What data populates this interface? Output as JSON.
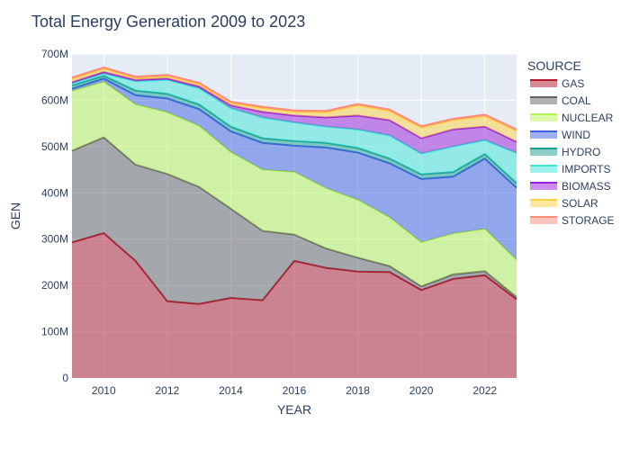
{
  "chart_data": {
    "type": "area",
    "stacked": true,
    "title": "Total Energy Generation 2009 to 2023",
    "xlabel": "YEAR",
    "ylabel": "GEN",
    "xlim": [
      2009,
      2023
    ],
    "ylim": [
      0,
      700000000
    ],
    "x": [
      2009,
      2010,
      2011,
      2012,
      2013,
      2014,
      2015,
      2016,
      2017,
      2018,
      2019,
      2020,
      2021,
      2022,
      2023
    ],
    "x_ticks": [
      2010,
      2012,
      2014,
      2016,
      2018,
      2020,
      2022
    ],
    "y_ticks": [
      {
        "value": 0,
        "label": "0"
      },
      {
        "value": 100000000,
        "label": "100M"
      },
      {
        "value": 200000000,
        "label": "200M"
      },
      {
        "value": 300000000,
        "label": "300M"
      },
      {
        "value": 400000000,
        "label": "400M"
      },
      {
        "value": 500000000,
        "label": "500M"
      },
      {
        "value": 600000000,
        "label": "600M"
      },
      {
        "value": 700000000,
        "label": "700M"
      }
    ],
    "grid": true,
    "legend_title": "SOURCE",
    "legend_position": "right",
    "series": [
      {
        "name": "GAS",
        "color": "#b2182b",
        "values": [
          293000000,
          313000000,
          253000000,
          166000000,
          160000000,
          173000000,
          168000000,
          253000000,
          238000000,
          230000000,
          229000000,
          190000000,
          214000000,
          222000000,
          170000000
        ]
      },
      {
        "name": "COAL",
        "color": "#636363",
        "values": [
          198000000,
          207000000,
          208000000,
          275000000,
          253000000,
          193000000,
          150000000,
          57000000,
          42000000,
          30000000,
          13000000,
          8000000,
          10000000,
          9000000,
          5000000
        ]
      },
      {
        "name": "NUCLEAR",
        "color": "#b8f553",
        "values": [
          129000000,
          120000000,
          130000000,
          133000000,
          132000000,
          122000000,
          132000000,
          135000000,
          130000000,
          125000000,
          105000000,
          95000000,
          88000000,
          91000000,
          80000000
        ]
      },
      {
        "name": "WIND",
        "color": "#3d5fe0",
        "values": [
          5000000,
          7000000,
          20000000,
          30000000,
          36000000,
          45000000,
          58000000,
          57000000,
          88000000,
          102000000,
          117000000,
          137000000,
          123000000,
          152000000,
          156000000
        ]
      },
      {
        "name": "HYDRO",
        "color": "#17a092",
        "values": [
          7000000,
          6000000,
          10000000,
          10000000,
          10000000,
          10000000,
          10000000,
          10000000,
          10000000,
          10000000,
          10000000,
          10000000,
          10000000,
          10000000,
          10000000
        ]
      },
      {
        "name": "IMPORTS",
        "color": "#3fe6d6",
        "values": [
          5000000,
          5000000,
          20000000,
          30000000,
          35000000,
          40000000,
          45000000,
          40000000,
          35000000,
          40000000,
          50000000,
          45000000,
          55000000,
          30000000,
          65000000
        ]
      },
      {
        "name": "BIOMASS",
        "color": "#9b1ed8",
        "values": [
          2000000,
          3000000,
          3000000,
          3000000,
          4000000,
          6000000,
          12000000,
          15000000,
          20000000,
          30000000,
          33000000,
          33000000,
          37000000,
          29000000,
          24000000
        ]
      },
      {
        "name": "SOLAR",
        "color": "#ffd23c",
        "values": [
          7000000,
          7000000,
          4000000,
          5000000,
          5000000,
          5000000,
          8000000,
          8000000,
          11000000,
          22000000,
          20000000,
          23000000,
          20000000,
          23000000,
          24000000
        ]
      },
      {
        "name": "STORAGE",
        "color": "#ff8c7a",
        "values": [
          3000000,
          3000000,
          3000000,
          3000000,
          3000000,
          3000000,
          3000000,
          3000000,
          3000000,
          3000000,
          3000000,
          3000000,
          3000000,
          3000000,
          3000000
        ]
      }
    ]
  }
}
